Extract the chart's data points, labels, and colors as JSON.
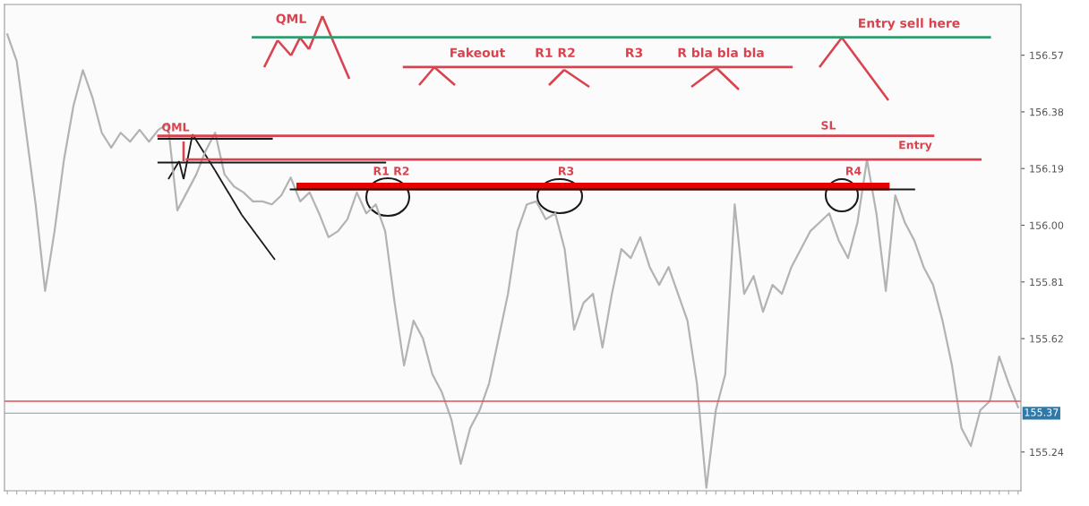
{
  "chart_data": {
    "type": "line",
    "categories": [
      null,
      null,
      null,
      null,
      null,
      null,
      null,
      null,
      null,
      null,
      null,
      null,
      null,
      null,
      null,
      null,
      null,
      null,
      null,
      null,
      null,
      null,
      null,
      null,
      null,
      null,
      null,
      null,
      null,
      null,
      null,
      null,
      null,
      null,
      null,
      null,
      null,
      null,
      null,
      null,
      null,
      null,
      null,
      null,
      null,
      null,
      null,
      null,
      null,
      null,
      null,
      null,
      null,
      null,
      null,
      null,
      null,
      null,
      null,
      null,
      null,
      null,
      null,
      null,
      null,
      null,
      null,
      null,
      null,
      null,
      null,
      null,
      null,
      null,
      null,
      null,
      null,
      null,
      null,
      null,
      null,
      null,
      null,
      null,
      null,
      null,
      null,
      null,
      null,
      null,
      null,
      null,
      null,
      null,
      null,
      null,
      null,
      null,
      null,
      null,
      null,
      null,
      null,
      null,
      null,
      null,
      null,
      null
    ],
    "series": [
      {
        "color": "#b3b3b3",
        "values": [
          156.64,
          156.55,
          156.31,
          156.07,
          155.78,
          155.98,
          156.22,
          156.4,
          156.52,
          156.43,
          156.31,
          156.26,
          156.31,
          156.28,
          156.32,
          156.28,
          156.32,
          156.34,
          156.05,
          156.11,
          156.17,
          156.25,
          156.31,
          156.17,
          156.13,
          156.11,
          156.08,
          156.08,
          156.07,
          156.1,
          156.16,
          156.08,
          156.11,
          156.04,
          155.96,
          155.98,
          156.02,
          156.11,
          156.04,
          156.07,
          155.98,
          155.74,
          155.53,
          155.68,
          155.62,
          155.5,
          155.44,
          155.35,
          155.2,
          155.32,
          155.38,
          155.47,
          155.62,
          155.77,
          155.98,
          156.07,
          156.08,
          156.02,
          156.04,
          155.92,
          155.65,
          155.74,
          155.77,
          155.59,
          155.77,
          155.92,
          155.89,
          155.96,
          155.86,
          155.8,
          155.86,
          155.77,
          155.68,
          155.47,
          155.12,
          155.38,
          155.5,
          156.07,
          155.77,
          155.83,
          155.71,
          155.8,
          155.77,
          155.86,
          155.92,
          155.98,
          156.01,
          156.04,
          155.95,
          155.89,
          156.01,
          156.22,
          156.04,
          155.78,
          156.1,
          156.01,
          155.95,
          155.86,
          155.8,
          155.68,
          155.53,
          155.32,
          155.26,
          155.38,
          155.41,
          155.56,
          155.47,
          155.39
        ]
      },
      {
        "color": "#2e9e6e",
        "values": [
          null,
          null,
          null,
          null,
          null,
          null,
          null,
          null,
          null,
          null,
          null,
          null,
          null,
          null,
          null,
          null,
          null,
          null,
          null,
          null,
          null,
          null,
          null,
          null,
          null,
          null,
          156.63,
          156.63,
          156.63,
          156.63,
          156.63,
          156.63,
          156.63,
          156.63,
          156.63,
          156.63,
          156.63,
          156.63,
          156.63,
          156.63,
          156.63,
          156.63,
          156.63,
          156.63,
          156.63,
          156.63,
          156.63,
          156.63,
          156.63,
          156.63,
          156.63,
          156.63,
          156.63,
          156.63,
          156.63,
          156.63,
          156.63,
          156.63,
          156.63,
          156.63,
          156.63,
          156.63,
          156.63,
          156.63,
          156.63,
          156.63,
          156.63,
          156.63,
          156.63,
          156.63,
          156.63,
          156.63,
          156.63,
          156.63,
          156.63,
          156.63,
          156.63,
          156.63,
          156.63,
          156.63,
          156.63,
          156.63,
          156.63,
          156.63,
          156.63,
          156.63,
          156.63,
          156.63,
          156.63,
          156.63,
          156.63,
          156.63,
          156.63,
          156.63,
          156.63,
          156.63,
          156.63,
          156.63,
          156.63,
          156.63,
          156.63,
          156.63,
          156.63,
          156.63,
          156.63,
          null,
          null,
          null
        ]
      },
      {
        "color": "#d9434f",
        "values": [
          null,
          null,
          null,
          null,
          null,
          null,
          null,
          null,
          null,
          null,
          null,
          null,
          null,
          null,
          null,
          null,
          null,
          null,
          null,
          null,
          null,
          null,
          null,
          null,
          null,
          null,
          null,
          null,
          null,
          null,
          null,
          null,
          null,
          null,
          null,
          null,
          null,
          null,
          null,
          null,
          null,
          null,
          156.53,
          156.53,
          156.53,
          156.53,
          156.53,
          156.53,
          156.53,
          156.53,
          156.53,
          156.53,
          156.53,
          156.53,
          156.53,
          156.53,
          156.53,
          156.53,
          156.53,
          156.53,
          156.53,
          156.53,
          156.53,
          156.53,
          156.53,
          156.53,
          156.53,
          156.53,
          156.53,
          156.53,
          156.53,
          156.53,
          156.53,
          156.53,
          156.53,
          156.53,
          156.53,
          156.53,
          156.53,
          156.53,
          156.53,
          156.53,
          156.53,
          156.53,
          null,
          null,
          null,
          null,
          null,
          null,
          null,
          null,
          null,
          null,
          null,
          null,
          null,
          null,
          null,
          null,
          null,
          null,
          null,
          null,
          null,
          null,
          null,
          null
        ]
      },
      {
        "color": "#d9434f",
        "values": [
          null,
          null,
          null,
          null,
          null,
          null,
          null,
          null,
          null,
          null,
          null,
          null,
          null,
          null,
          null,
          null,
          156.3,
          156.3,
          156.3,
          156.3,
          156.3,
          156.3,
          156.3,
          156.3,
          156.3,
          156.3,
          156.3,
          156.3,
          156.3,
          156.3,
          156.3,
          156.3,
          156.3,
          156.3,
          156.3,
          156.3,
          156.3,
          156.3,
          156.3,
          156.3,
          156.3,
          156.3,
          156.3,
          156.3,
          156.3,
          156.3,
          156.3,
          156.3,
          156.3,
          156.3,
          156.3,
          156.3,
          156.3,
          156.3,
          156.3,
          156.3,
          156.3,
          156.3,
          156.3,
          156.3,
          156.3,
          156.3,
          156.3,
          156.3,
          156.3,
          156.3,
          156.3,
          156.3,
          156.3,
          156.3,
          156.3,
          156.3,
          156.3,
          156.3,
          156.3,
          156.3,
          156.3,
          156.3,
          156.3,
          156.3,
          156.3,
          156.3,
          156.3,
          156.3,
          156.3,
          156.3,
          156.3,
          156.3,
          156.3,
          156.3,
          156.3,
          156.3,
          156.3,
          156.3,
          156.3,
          156.3,
          156.3,
          156.3,
          156.3,
          null,
          null,
          null,
          null,
          null,
          null,
          null,
          null,
          null
        ]
      },
      {
        "color": "#d9434f",
        "values": [
          null,
          null,
          null,
          null,
          null,
          null,
          null,
          null,
          null,
          null,
          null,
          null,
          null,
          null,
          null,
          null,
          null,
          null,
          null,
          156.22,
          156.22,
          156.22,
          156.22,
          156.22,
          156.22,
          156.22,
          156.22,
          156.22,
          156.22,
          156.22,
          156.22,
          156.22,
          156.22,
          156.22,
          156.22,
          156.22,
          156.22,
          156.22,
          156.22,
          156.22,
          156.22,
          156.22,
          156.22,
          156.22,
          156.22,
          156.22,
          156.22,
          156.22,
          156.22,
          156.22,
          156.22,
          156.22,
          156.22,
          156.22,
          156.22,
          156.22,
          156.22,
          156.22,
          156.22,
          156.22,
          156.22,
          156.22,
          156.22,
          156.22,
          156.22,
          156.22,
          156.22,
          156.22,
          156.22,
          156.22,
          156.22,
          156.22,
          156.22,
          156.22,
          156.22,
          156.22,
          156.22,
          156.22,
          156.22,
          156.22,
          156.22,
          156.22,
          156.22,
          156.22,
          156.22,
          156.22,
          156.22,
          156.22,
          156.22,
          156.22,
          156.22,
          156.22,
          156.22,
          156.22,
          156.22,
          156.22,
          156.22,
          156.22,
          156.22,
          156.22,
          156.22,
          156.22,
          156.22,
          156.22,
          null,
          null,
          null,
          null
        ]
      },
      {
        "color": "#e60000",
        "values": [
          null,
          null,
          null,
          null,
          null,
          null,
          null,
          null,
          null,
          null,
          null,
          null,
          null,
          null,
          null,
          null,
          null,
          null,
          null,
          null,
          null,
          null,
          null,
          null,
          null,
          null,
          null,
          null,
          null,
          null,
          null,
          156.13,
          156.13,
          156.13,
          156.13,
          156.13,
          156.13,
          156.13,
          156.13,
          156.13,
          156.13,
          156.13,
          156.13,
          156.13,
          156.13,
          156.13,
          156.13,
          156.13,
          156.13,
          156.13,
          156.13,
          156.13,
          156.13,
          156.13,
          156.13,
          156.13,
          156.13,
          156.13,
          156.13,
          156.13,
          156.13,
          156.13,
          156.13,
          156.13,
          156.13,
          156.13,
          156.13,
          156.13,
          156.13,
          156.13,
          156.13,
          156.13,
          156.13,
          156.13,
          156.13,
          156.13,
          156.13,
          156.13,
          156.13,
          156.13,
          156.13,
          156.13,
          156.13,
          156.13,
          156.13,
          156.13,
          156.13,
          156.13,
          156.13,
          156.13,
          156.13,
          156.13,
          156.13,
          156.13,
          null,
          null,
          null,
          null,
          null,
          null,
          null,
          null,
          null,
          null,
          null,
          null,
          null,
          null
        ]
      },
      {
        "color": "#1a1a1a",
        "values": [
          null,
          null,
          null,
          null,
          null,
          null,
          null,
          null,
          null,
          null,
          null,
          null,
          null,
          null,
          null,
          null,
          156.29,
          156.29,
          156.29,
          156.29,
          156.29,
          156.29,
          156.29,
          156.29,
          156.29,
          156.29,
          156.29,
          156.29,
          156.29,
          null,
          null,
          null,
          null,
          null,
          null,
          null,
          null,
          null,
          null,
          null,
          null,
          null,
          null,
          null,
          null,
          null,
          null,
          null,
          null,
          null,
          null,
          null,
          null,
          null,
          null,
          null,
          null,
          null,
          null,
          null,
          null,
          null,
          null,
          null,
          null,
          null,
          null,
          null,
          null,
          null,
          null,
          null,
          null,
          null,
          null,
          null,
          null,
          null,
          null,
          null,
          null,
          null,
          null,
          null,
          null,
          null,
          null,
          null,
          null,
          null,
          null,
          null,
          null,
          null,
          null,
          null,
          null,
          null,
          null,
          null,
          null,
          null,
          null,
          null,
          null,
          null,
          null,
          null
        ]
      },
      {
        "color": "#1a1a1a",
        "values": [
          null,
          null,
          null,
          null,
          null,
          null,
          null,
          null,
          null,
          null,
          null,
          null,
          null,
          null,
          null,
          null,
          156.21,
          156.21,
          156.21,
          156.21,
          156.21,
          156.21,
          156.21,
          156.21,
          156.21,
          156.21,
          156.21,
          156.21,
          156.21,
          156.21,
          156.21,
          156.21,
          156.21,
          156.21,
          156.21,
          156.21,
          156.21,
          156.21,
          156.21,
          156.21,
          156.21,
          null,
          null,
          null,
          null,
          null,
          null,
          null,
          null,
          null,
          null,
          null,
          null,
          null,
          null,
          null,
          null,
          null,
          null,
          null,
          null,
          null,
          null,
          null,
          null,
          null,
          null,
          null,
          null,
          null,
          null,
          null,
          null,
          null,
          null,
          null,
          null,
          null,
          null,
          null,
          null,
          null,
          null,
          null,
          null,
          null,
          null,
          null,
          null,
          null,
          null,
          null,
          null,
          null,
          null,
          null,
          null,
          null,
          null,
          null,
          null,
          null,
          null,
          null,
          null,
          null,
          null,
          null
        ]
      },
      {
        "color": "#1a1a1a",
        "values": [
          null,
          null,
          null,
          null,
          null,
          null,
          null,
          null,
          null,
          null,
          null,
          null,
          null,
          null,
          null,
          null,
          null,
          null,
          null,
          null,
          null,
          null,
          null,
          null,
          null,
          null,
          null,
          null,
          null,
          null,
          156.12,
          156.12,
          156.12,
          156.12,
          156.12,
          156.12,
          156.12,
          156.12,
          156.12,
          156.12,
          156.12,
          156.12,
          156.12,
          156.12,
          156.12,
          156.12,
          156.12,
          156.12,
          156.12,
          156.12,
          156.12,
          156.12,
          156.12,
          156.12,
          156.12,
          156.12,
          156.12,
          156.12,
          156.12,
          156.12,
          156.12,
          156.12,
          156.12,
          156.12,
          156.12,
          156.12,
          156.12,
          156.12,
          156.12,
          156.12,
          156.12,
          156.12,
          156.12,
          156.12,
          156.12,
          156.12,
          156.12,
          156.12,
          156.12,
          156.12,
          156.12,
          156.12,
          156.12,
          156.12,
          156.12,
          156.12,
          156.12,
          156.12,
          156.12,
          156.12,
          156.12,
          156.12,
          156.12,
          156.12,
          156.12,
          156.12,
          156.12,
          null,
          null,
          null,
          null,
          null,
          null,
          null,
          null,
          null,
          null,
          null
        ]
      }
    ],
    "ylim": [
      155.11,
      156.74
    ],
    "yticks": [
      156.57,
      156.38,
      156.19,
      {
        "value": 156.0,
        "label": "156.00"
      },
      155.81,
      155.62,
      155.24
    ],
    "tick_labels": "y",
    "grid": false,
    "ref_lines": [
      {
        "axis": "y",
        "value": 155.41,
        "color": "#e0505a"
      },
      {
        "axis": "y",
        "value": 155.37,
        "color": "#8ab4d0",
        "label": "155.37"
      }
    ],
    "annotations": [
      "QML",
      "Fakeout",
      "R1 R2",
      "R3",
      "R bla bla bla",
      "Entry sell here",
      "QML",
      "R1 R2",
      "R3",
      "R4",
      "SL",
      "Entry"
    ]
  }
}
